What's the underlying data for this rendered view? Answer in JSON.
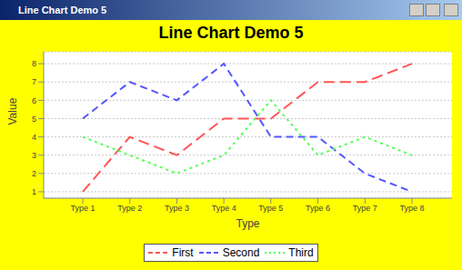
{
  "window": {
    "title": "Line Chart Demo 5"
  },
  "chart_data": {
    "type": "line",
    "title": "Line Chart Demo 5",
    "x_label": "Type",
    "y_label": "Value",
    "categories": [
      "Type 1",
      "Type 2",
      "Type 3",
      "Type 4",
      "Type 5",
      "Type 6",
      "Type 7",
      "Type 8"
    ],
    "series": [
      {
        "name": "First",
        "color": "#ff5555",
        "line_style": "dashed",
        "values": [
          1,
          4,
          3,
          5,
          5,
          7,
          7,
          8
        ]
      },
      {
        "name": "Second",
        "color": "#5555ff",
        "line_style": "dashed",
        "values": [
          5,
          7,
          6,
          8,
          4,
          4,
          2,
          1
        ]
      },
      {
        "name": "Third",
        "color": "#55ff55",
        "line_style": "dotted",
        "values": [
          4,
          3,
          2,
          3,
          6,
          3,
          4,
          3
        ]
      }
    ],
    "ylim": [
      0.65,
      8.65
    ],
    "yticks": [
      1,
      2,
      3,
      4,
      5,
      6,
      7,
      8
    ],
    "grid": true,
    "legend": "bottom"
  }
}
